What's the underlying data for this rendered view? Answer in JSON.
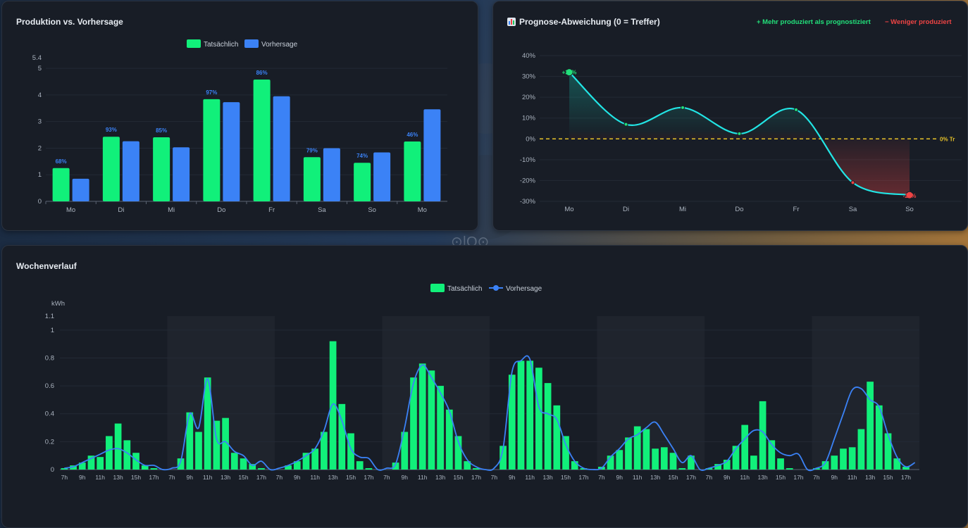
{
  "colors": {
    "actual": "#11f07a",
    "forecast": "#3b82f6",
    "deviation_line": "#22e5e5",
    "zero_line": "#e6c229",
    "negative": "#ef4444",
    "positive": "#22e07a"
  },
  "production": {
    "title": "Produktion vs. Vorhersage",
    "legend": [
      "Tatsächlich",
      "Vorhersage"
    ],
    "chart_data": {
      "type": "bar",
      "categories": [
        "Mo",
        "Di",
        "Mi",
        "Do",
        "Fr",
        "Sa",
        "So",
        "Mo"
      ],
      "series": [
        {
          "name": "Tatsächlich",
          "values": [
            1.25,
            2.43,
            2.41,
            3.84,
            4.58,
            1.66,
            1.45,
            2.25
          ]
        },
        {
          "name": "Vorhersage",
          "values": [
            0.85,
            2.26,
            2.03,
            3.73,
            3.95,
            2.0,
            1.84,
            3.46
          ]
        }
      ],
      "data_labels": [
        "68%",
        "93%",
        "85%",
        "97%",
        "86%",
        "79%",
        "74%",
        "46%"
      ],
      "ylim": [
        0,
        5.4
      ],
      "yticks": [
        "0",
        "1",
        "2",
        "3",
        "4",
        "5",
        "5.4"
      ]
    }
  },
  "deviation": {
    "icon": "bar-chart-icon",
    "title": "Prognose-Abweichung (0 = Treffer)",
    "hint_positive": "+ Mehr produziert als prognostiziert",
    "hint_negative": "− Weniger produziert",
    "chart_data": {
      "type": "line",
      "categories": [
        "Mo",
        "Di",
        "Mi",
        "Do",
        "Fr",
        "Sa",
        "So"
      ],
      "values": [
        32,
        7,
        15,
        2.5,
        14,
        -21,
        -27
      ],
      "ylim": [
        -30,
        40
      ],
      "yticks": [
        "-30%",
        "-20%",
        "-10%",
        "0%",
        "10%",
        "20%",
        "30%",
        "40%"
      ],
      "annotations": [
        "+32%",
        "-27%"
      ],
      "zero_line_label": "0% Tr"
    }
  },
  "weekly": {
    "title": "Wochenverlauf",
    "legend": [
      "Tatsächlich",
      "Vorhersage"
    ],
    "ylabel": "kWh",
    "chart_data": {
      "type": "bar",
      "yticks": [
        "0",
        "0.2",
        "0.4",
        "0.6",
        "0.8",
        "1",
        "1.1"
      ],
      "ylim": [
        0,
        1.1
      ],
      "hour_labels": [
        "7h",
        "9h",
        "11h",
        "13h",
        "15h",
        "17h"
      ],
      "days": [
        {
          "actual": [
            0.01,
            0.03,
            0.05,
            0.1,
            0.09,
            0.24,
            0.33,
            0.21,
            0.12,
            0.03,
            0.01,
            0.0
          ],
          "forecast": [
            0.01,
            0.02,
            0.05,
            0.08,
            0.11,
            0.14,
            0.15,
            0.12,
            0.07,
            0.03,
            0.03,
            0.0
          ]
        },
        {
          "actual": [
            0.0,
            0.08,
            0.41,
            0.27,
            0.66,
            0.35,
            0.37,
            0.12,
            0.08,
            0.04,
            0.01,
            0.0
          ],
          "forecast": [
            0.01,
            0.06,
            0.4,
            0.3,
            0.65,
            0.22,
            0.2,
            0.13,
            0.1,
            0.03,
            0.06,
            0.0
          ]
        },
        {
          "actual": [
            0.0,
            0.03,
            0.06,
            0.12,
            0.15,
            0.27,
            0.92,
            0.47,
            0.26,
            0.06,
            0.01,
            0.0
          ],
          "forecast": [
            0.01,
            0.03,
            0.06,
            0.1,
            0.15,
            0.28,
            0.47,
            0.35,
            0.15,
            0.09,
            0.08,
            0.0
          ]
        },
        {
          "actual": [
            0.0,
            0.05,
            0.27,
            0.66,
            0.76,
            0.71,
            0.6,
            0.43,
            0.24,
            0.06,
            0.01,
            0.0
          ],
          "forecast": [
            0.01,
            0.04,
            0.3,
            0.62,
            0.75,
            0.66,
            0.55,
            0.42,
            0.2,
            0.07,
            0.02,
            0.0
          ]
        },
        {
          "actual": [
            0.0,
            0.17,
            0.68,
            0.78,
            0.78,
            0.73,
            0.62,
            0.46,
            0.24,
            0.06,
            0.01,
            0.0
          ],
          "forecast": [
            0.01,
            0.15,
            0.7,
            0.78,
            0.79,
            0.45,
            0.4,
            0.36,
            0.18,
            0.06,
            0.01,
            0.0
          ]
        },
        {
          "actual": [
            0.02,
            0.1,
            0.14,
            0.23,
            0.31,
            0.29,
            0.15,
            0.16,
            0.12,
            0.01,
            0.1,
            0.0
          ],
          "forecast": [
            0.01,
            0.09,
            0.15,
            0.22,
            0.25,
            0.3,
            0.34,
            0.25,
            0.15,
            0.05,
            0.1,
            0.0
          ]
        },
        {
          "actual": [
            0.01,
            0.04,
            0.07,
            0.17,
            0.32,
            0.1,
            0.49,
            0.21,
            0.08,
            0.01,
            0.0,
            0.0
          ],
          "forecast": [
            0.01,
            0.03,
            0.06,
            0.15,
            0.22,
            0.28,
            0.27,
            0.18,
            0.12,
            0.1,
            0.11,
            0.0
          ]
        },
        {
          "actual": [
            0.01,
            0.06,
            0.1,
            0.15,
            0.16,
            0.29,
            0.63,
            0.46,
            0.26,
            0.08,
            0.02,
            0.0
          ],
          "forecast": [
            0.01,
            0.05,
            0.22,
            0.4,
            0.57,
            0.58,
            0.5,
            0.45,
            0.25,
            0.09,
            0.02,
            0.05
          ]
        }
      ]
    }
  }
}
